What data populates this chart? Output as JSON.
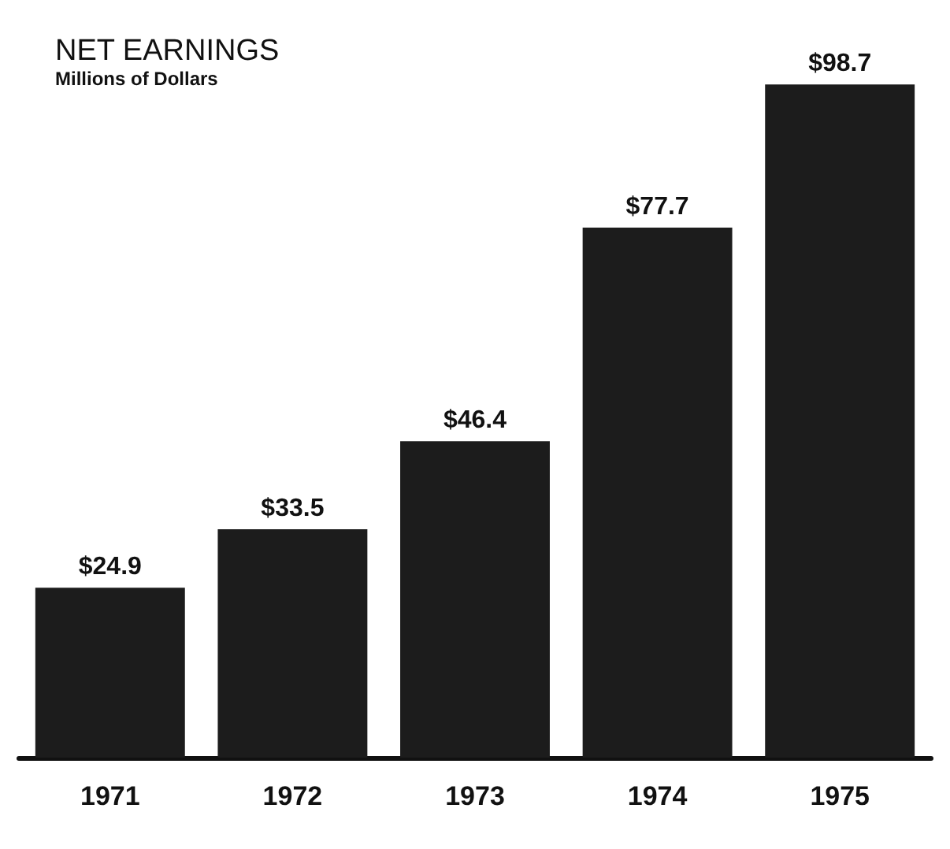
{
  "chart_data": {
    "type": "bar",
    "title": "NET EARNINGS",
    "subtitle": "Millions of Dollars",
    "categories": [
      "1971",
      "1972",
      "1973",
      "1974",
      "1975"
    ],
    "values": [
      24.9,
      33.5,
      46.4,
      77.7,
      98.7
    ],
    "value_labels": [
      "$24.9",
      "$33.5",
      "$46.4",
      "$77.7",
      "$98.7"
    ],
    "color": "#1c1c1c"
  }
}
